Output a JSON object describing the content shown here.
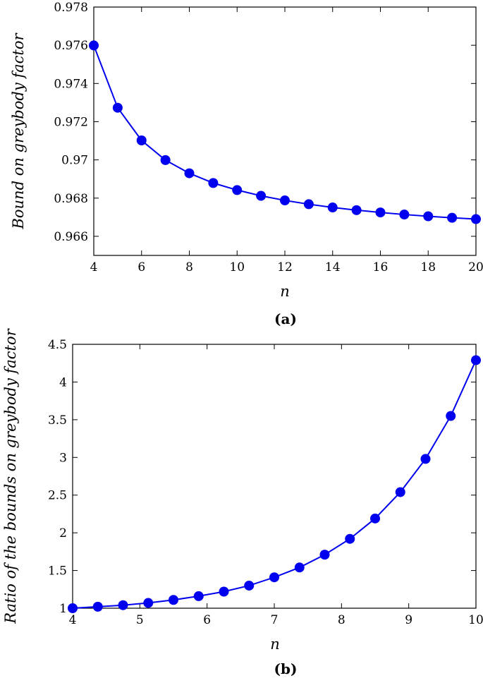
{
  "chart_data": [
    {
      "type": "line",
      "caption": "(a)",
      "xlabel": "n",
      "ylabel": "Bound on greybody factor",
      "xlim": [
        4,
        20
      ],
      "ylim": [
        0.965,
        0.978
      ],
      "xticks": [
        "4",
        "6",
        "8",
        "10",
        "12",
        "14",
        "16",
        "18",
        "20"
      ],
      "yticks": [
        "0.966",
        "0.968",
        "0.97",
        "0.972",
        "0.974",
        "0.976",
        "0.978"
      ],
      "grid": false,
      "color": "#0000ee",
      "series": [
        {
          "x": [
            4,
            5,
            6,
            7,
            8,
            9,
            10,
            11,
            12,
            13,
            14,
            15,
            16,
            17,
            18,
            19,
            20
          ],
          "y": [
            0.97599,
            0.97273,
            0.97102,
            0.96999,
            0.9693,
            0.96879,
            0.96842,
            0.96812,
            0.96788,
            0.96768,
            0.96751,
            0.96737,
            0.96725,
            0.96714,
            0.96705,
            0.96697,
            0.9669
          ]
        }
      ]
    },
    {
      "type": "line",
      "caption": "(b)",
      "xlabel": "n",
      "ylabel": "Ratio of the bounds on greybody factor",
      "xlim": [
        4,
        10
      ],
      "ylim": [
        1,
        4.5
      ],
      "xticks": [
        "4",
        "5",
        "6",
        "7",
        "8",
        "9",
        "10"
      ],
      "yticks": [
        "1",
        "1.5",
        "2",
        "2.5",
        "3",
        "3.5",
        "4",
        "4.5"
      ],
      "grid": false,
      "color": "#0000ee",
      "series": [
        {
          "x": [
            4,
            4.375,
            4.75,
            5.125,
            5.5,
            5.875,
            6.25,
            6.625,
            7,
            7.375,
            7.75,
            8.125,
            8.5,
            8.875,
            9.25,
            9.625,
            10
          ],
          "y": [
            1.0,
            1.02,
            1.04,
            1.07,
            1.11,
            1.16,
            1.22,
            1.3,
            1.41,
            1.54,
            1.71,
            1.92,
            2.19,
            2.54,
            2.98,
            3.55,
            4.29
          ]
        }
      ]
    }
  ]
}
